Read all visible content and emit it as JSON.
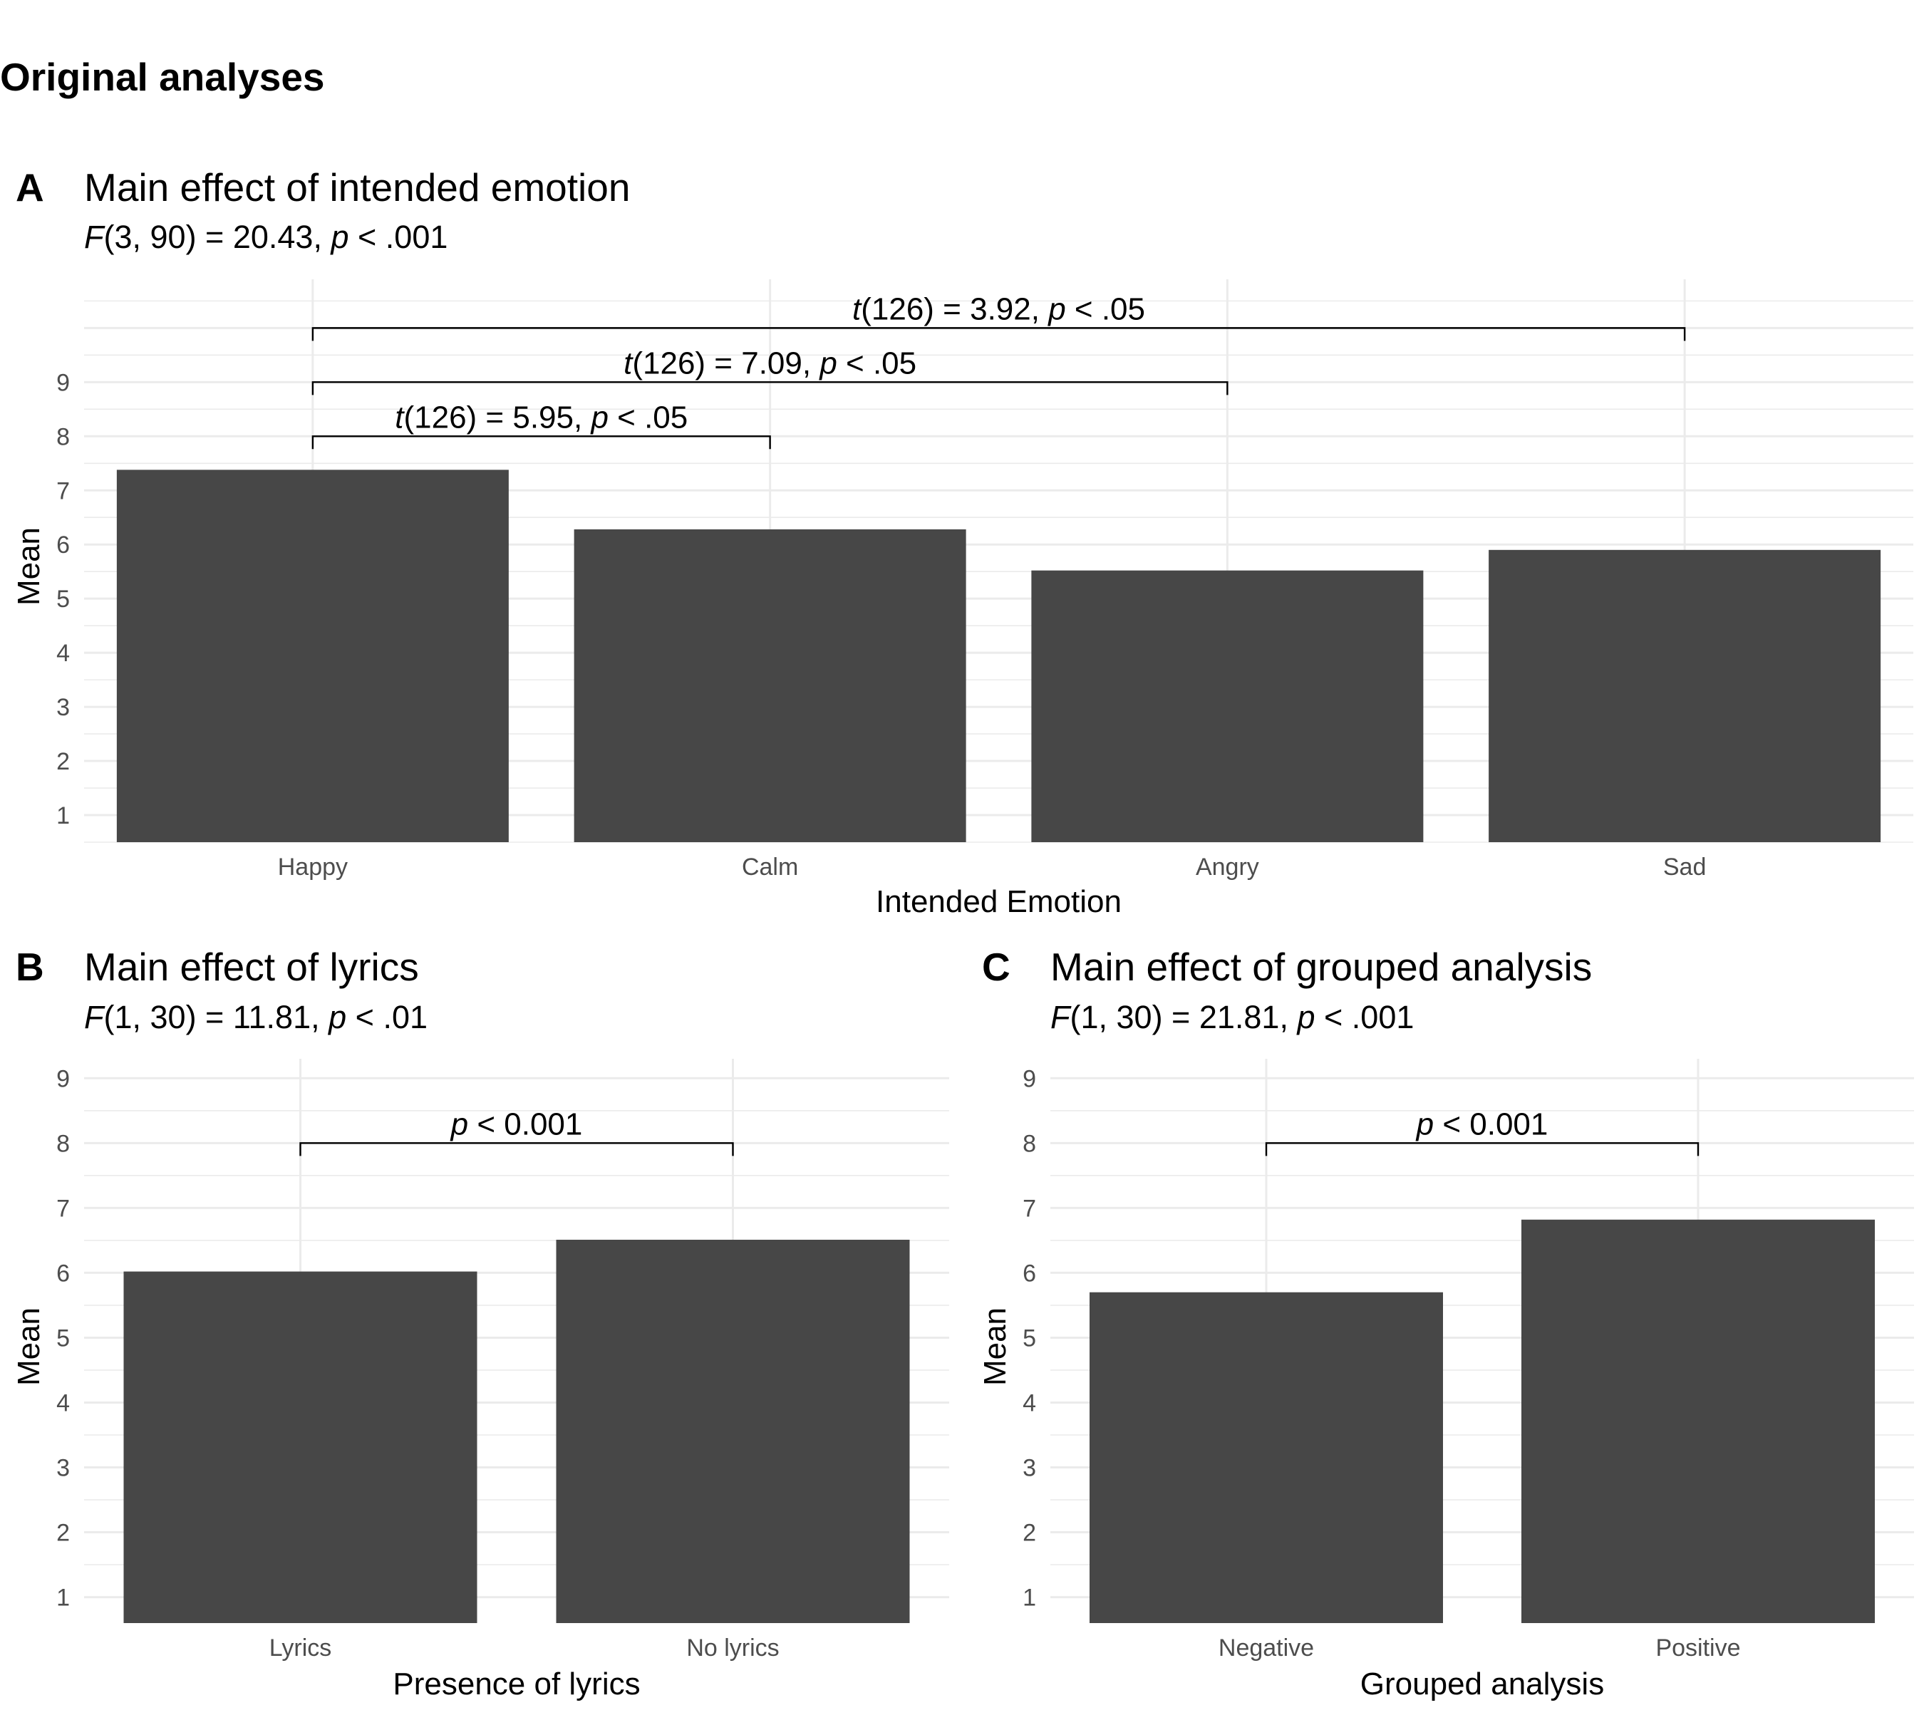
{
  "page_title": "Original analyses",
  "chart_data": [
    {
      "type": "bar",
      "letter": "A",
      "title": "Main effect of intended emotion",
      "subtitle_parts": [
        "F",
        "(3, 90) = 20.43, ",
        "p",
        " < .001"
      ],
      "xlabel": "Intended Emotion",
      "ylabel": "Mean",
      "categories": [
        "Happy",
        "Calm",
        "Angry",
        "Sad"
      ],
      "values": [
        7.38,
        6.28,
        5.52,
        5.9
      ],
      "ylim": [
        0.5,
        10.9
      ],
      "yticks": [
        "1",
        "2",
        "3",
        "4",
        "5",
        "6",
        "7",
        "8",
        "9"
      ],
      "grid": true,
      "comparisons": [
        {
          "from": 0,
          "to": 1,
          "level": 8,
          "parts": [
            "t",
            "(126) = 5.95,  ",
            "p",
            " < .05"
          ]
        },
        {
          "from": 0,
          "to": 2,
          "level": 9,
          "parts": [
            "t",
            "(126) = 7.09,  ",
            "p",
            " < .05"
          ]
        },
        {
          "from": 0,
          "to": 3,
          "level": 10,
          "parts": [
            "t",
            "(126) = 3.92,  ",
            "p",
            " < .05"
          ]
        }
      ]
    },
    {
      "type": "bar",
      "letter": "B",
      "title": "Main effect of lyrics",
      "subtitle_parts": [
        "F",
        "(1, 30) = 11.81, ",
        "p",
        " < .01"
      ],
      "xlabel": "Presence of lyrics",
      "ylabel": "Mean",
      "categories": [
        "Lyrics",
        "No lyrics"
      ],
      "values": [
        6.02,
        6.51
      ],
      "ylim": [
        0.6,
        9.3
      ],
      "yticks": [
        "1",
        "2",
        "3",
        "4",
        "5",
        "6",
        "7",
        "8",
        "9"
      ],
      "grid": true,
      "comparisons": [
        {
          "from": 0,
          "to": 1,
          "level": 8,
          "parts": [
            "p",
            " < 0.001"
          ]
        }
      ]
    },
    {
      "type": "bar",
      "letter": "C",
      "title": "Main effect of grouped analysis",
      "subtitle_parts": [
        "F",
        "(1, 30) = 21.81, ",
        "p",
        " < .001"
      ],
      "xlabel": "Grouped analysis",
      "ylabel": "Mean",
      "categories": [
        "Negative",
        "Positive"
      ],
      "values": [
        5.7,
        6.82
      ],
      "ylim": [
        0.6,
        9.3
      ],
      "yticks": [
        "1",
        "2",
        "3",
        "4",
        "5",
        "6",
        "7",
        "8",
        "9"
      ],
      "grid": true,
      "comparisons": [
        {
          "from": 0,
          "to": 1,
          "level": 8,
          "parts": [
            "p",
            " < 0.001"
          ]
        }
      ]
    }
  ]
}
